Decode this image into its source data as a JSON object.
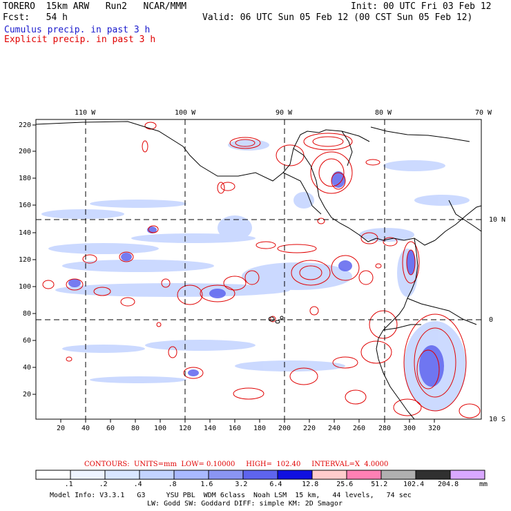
{
  "header": {
    "title_line": "TORERO  15km ARW   Run2   NCAR/MMM",
    "init": "Init: 00 UTC Fri 03 Feb 12",
    "fcst": "Fcst:   54 h",
    "valid": "Valid: 06 UTC Sun 05 Feb 12 (00 CST Sun 05 Feb 12)",
    "legend_cumulus": "Cumulus precip. in past 3 h",
    "legend_explicit": "Explicit precip. in past 3 h"
  },
  "colors": {
    "cumulus": "#1a1acc",
    "explicit": "#e00000",
    "coast": "#000000"
  },
  "map": {
    "top_labels": [
      "110 W",
      "100 W",
      "90 W",
      "80 W",
      "70 W"
    ],
    "right_labels": [
      "10 N",
      "0",
      "10 S"
    ],
    "x_ticks": [
      "20",
      "40",
      "60",
      "80",
      "100",
      "120",
      "140",
      "160",
      "180",
      "200",
      "220",
      "240",
      "260",
      "280",
      "300",
      "320"
    ],
    "y_ticks": [
      "220",
      "200",
      "180",
      "160",
      "140",
      "120",
      "100",
      "80",
      "60",
      "40",
      "20"
    ]
  },
  "footer": {
    "contours": "CONTOURS:  UNITS=mm  LOW= 0.10000     HIGH=  102.40     INTERVAL=X  4.0000",
    "scale_labels": [
      ".1",
      ".2",
      ".4",
      ".8",
      "1.6",
      "3.2",
      "6.4",
      "12.8",
      "25.6",
      "51.2",
      "102.4",
      "204.8"
    ],
    "scale_colors": [
      "#ffffff",
      "#eef4ff",
      "#d9e6ff",
      "#c3d3ff",
      "#a9b9ff",
      "#8a95f2",
      "#5e64ee",
      "#1010e0",
      "#ffcccc",
      "#ff80b4",
      "#b0b0b0",
      "#303030",
      "#d9a8ff"
    ],
    "units": "mm",
    "model_info_1": "Model Info: V3.3.1   G3     YSU PBL  WDM 6class  Noah LSM  15 km,   44 levels,   74 sec",
    "model_info_2": "LW: Godd SW: Goddard DIFF: simple KM: 2D Smagor"
  }
}
